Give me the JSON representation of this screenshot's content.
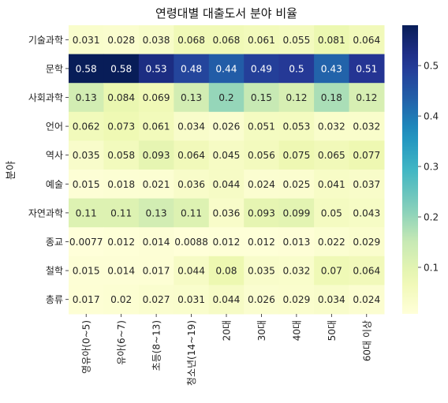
{
  "chart_data": {
    "type": "heatmap",
    "title": "연령대별 대출도서 분야 비율",
    "xlabel": "",
    "ylabel": "분야",
    "x_categories": [
      "영유아(0~5)",
      "유아(6~7)",
      "초등(8~13)",
      "청소년(14~19)",
      "20대",
      "30대",
      "40대",
      "50대",
      "60대 이상"
    ],
    "y_categories": [
      "기술과학",
      "문학",
      "사회과학",
      "언어",
      "역사",
      "예술",
      "자연과학",
      "종교",
      "철학",
      "총류"
    ],
    "values": [
      [
        0.031,
        0.028,
        0.038,
        0.068,
        0.068,
        0.061,
        0.055,
        0.081,
        0.064
      ],
      [
        0.58,
        0.58,
        0.53,
        0.48,
        0.44,
        0.49,
        0.5,
        0.43,
        0.51
      ],
      [
        0.13,
        0.084,
        0.069,
        0.13,
        0.2,
        0.15,
        0.12,
        0.18,
        0.12
      ],
      [
        0.062,
        0.073,
        0.061,
        0.034,
        0.026,
        0.051,
        0.053,
        0.032,
        0.032
      ],
      [
        0.035,
        0.058,
        0.093,
        0.064,
        0.045,
        0.056,
        0.075,
        0.065,
        0.077
      ],
      [
        0.015,
        0.018,
        0.021,
        0.036,
        0.044,
        0.024,
        0.025,
        0.041,
        0.037
      ],
      [
        0.11,
        0.11,
        0.13,
        0.11,
        0.036,
        0.093,
        0.099,
        0.05,
        0.043
      ],
      [
        0.0077,
        0.012,
        0.014,
        0.0088,
        0.012,
        0.012,
        0.013,
        0.022,
        0.029
      ],
      [
        0.015,
        0.014,
        0.017,
        0.044,
        0.08,
        0.035,
        0.032,
        0.07,
        0.064
      ],
      [
        0.017,
        0.02,
        0.027,
        0.031,
        0.044,
        0.026,
        0.029,
        0.034,
        0.024
      ]
    ],
    "colormap": "YlGnBu",
    "vmin": 0.0077,
    "vmax": 0.58,
    "colorbar_ticks": [
      "0.1",
      "0.2",
      "0.3",
      "0.4",
      "0.5"
    ],
    "colorbar_tick_values": [
      0.1,
      0.2,
      0.3,
      0.4,
      0.5
    ],
    "annotate": true,
    "grid": false
  }
}
